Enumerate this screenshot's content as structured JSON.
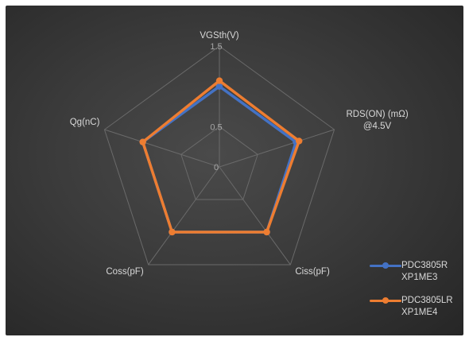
{
  "chart_data": {
    "type": "radar",
    "axes": [
      "VGSth(V)",
      "RDS(ON) (mΩ)\n@4.5V",
      "Ciss(pF)",
      "Coss(pF)",
      "Qg(nC)"
    ],
    "ticks": [
      "0",
      "0.5",
      "1",
      "1.5"
    ],
    "rlim": [
      0,
      1.5
    ],
    "grid": true,
    "legend_position": "bottom-right",
    "series": [
      {
        "name": "PDC3805R\nXP1ME3",
        "color": "#4472c4",
        "values": [
          1.0,
          1.0,
          1.0,
          1.0,
          1.0
        ]
      },
      {
        "name": "PDC3805LR\nXP1ME4",
        "color": "#ed7d31",
        "values": [
          1.07,
          1.04,
          1.0,
          1.0,
          1.0
        ]
      }
    ]
  }
}
